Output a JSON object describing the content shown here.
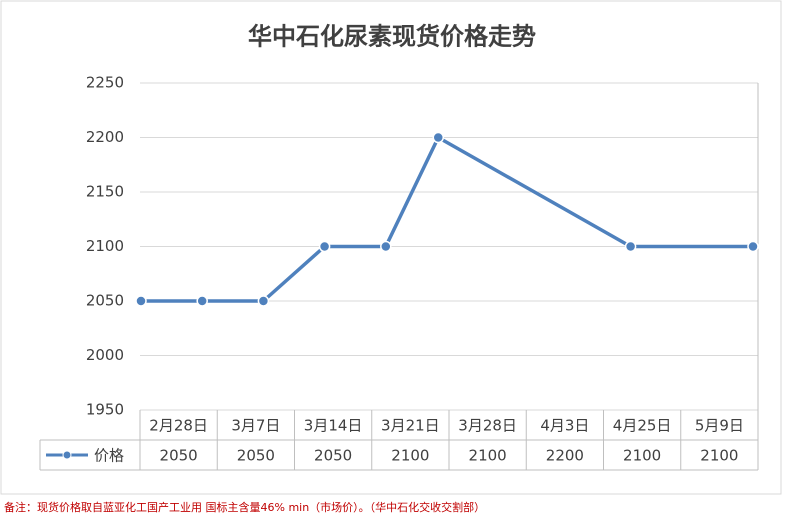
{
  "chart_data": {
    "type": "line",
    "title": "华中石化尿素现货价格走势",
    "categories": [
      "2月28日",
      "3月7日",
      "3月14日",
      "3月21日",
      "3月28日",
      "4月3日",
      "4月25日",
      "5月9日"
    ],
    "series": [
      {
        "name": "价格",
        "color": "#4f81bd",
        "values": [
          2050,
          2050,
          2050,
          2100,
          2100,
          2200,
          2100,
          2100
        ]
      }
    ],
    "ylim": [
      1950,
      2250
    ],
    "yticks": [
      1950,
      2000,
      2050,
      2100,
      2150,
      2200,
      2250
    ],
    "grid": true
  },
  "footnote": "备注：现货价格取自蓝亚化工国产工业用 国标主含量46% min（市场价）。（华中石化交收交割部）"
}
